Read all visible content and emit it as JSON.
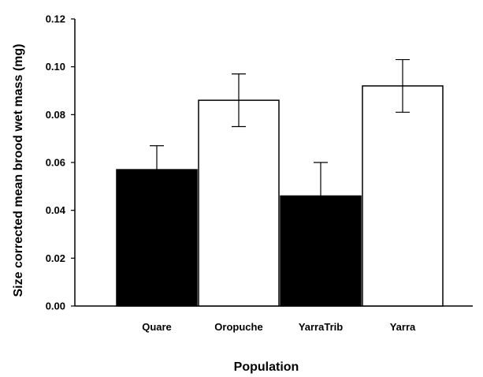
{
  "chart_data": {
    "type": "bar",
    "title": "",
    "xlabel": "Population",
    "ylabel": "Size corrected mean brood wet mass (mg)",
    "ylim": [
      0,
      0.12
    ],
    "yticks": [
      0.0,
      0.02,
      0.04,
      0.06,
      0.08,
      0.1,
      0.12
    ],
    "ytick_labels": [
      "0.00",
      "0.02",
      "0.04",
      "0.06",
      "0.08",
      "0.10",
      "0.12"
    ],
    "categories": [
      "Quare",
      "Oropuche",
      "YarraTrib",
      "Yarra"
    ],
    "values": [
      0.057,
      0.086,
      0.046,
      0.092
    ],
    "error": [
      0.01,
      0.011,
      0.014,
      0.011
    ],
    "bar_fill": [
      "#000000",
      "#ffffff",
      "#000000",
      "#ffffff"
    ],
    "grid": false,
    "legend": "none"
  }
}
